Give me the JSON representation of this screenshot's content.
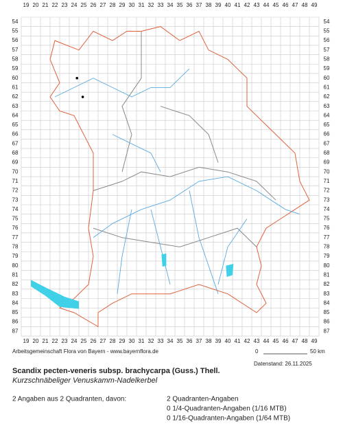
{
  "map": {
    "columns": [
      19,
      20,
      21,
      22,
      23,
      24,
      25,
      26,
      27,
      28,
      29,
      30,
      31,
      32,
      33,
      34,
      35,
      36,
      37,
      38,
      39,
      40,
      41,
      42,
      43,
      44,
      45,
      46,
      47,
      48,
      49
    ],
    "rows": [
      54,
      55,
      56,
      57,
      58,
      59,
      60,
      61,
      62,
      63,
      64,
      65,
      66,
      67,
      68,
      69,
      70,
      71,
      72,
      73,
      74,
      75,
      76,
      77,
      78,
      79,
      80,
      81,
      82,
      83,
      84,
      85,
      86,
      87
    ],
    "credit": "Arbeitsgemeinschaft Flora von Bayern - www.bayernflora.de",
    "scale_start": "0",
    "scale_end": "50 km",
    "date": "Datenstand: 26.11.2025",
    "title": "Scandix pecten-veneris subsp. brachycarpa (Guss.) Thell.",
    "common_name": "Kurzschnäbeliger Venuskamm-Nadelkerbel",
    "summary": "2 Angaben aus 2 Quadranten, davon:",
    "counts": [
      "2 Quadranten-Angaben",
      "0 1/4-Quadranten-Angaben (1/16 MTB)",
      "0 1/16-Quadranten-Angaben (1/64 MTB)"
    ]
  }
}
